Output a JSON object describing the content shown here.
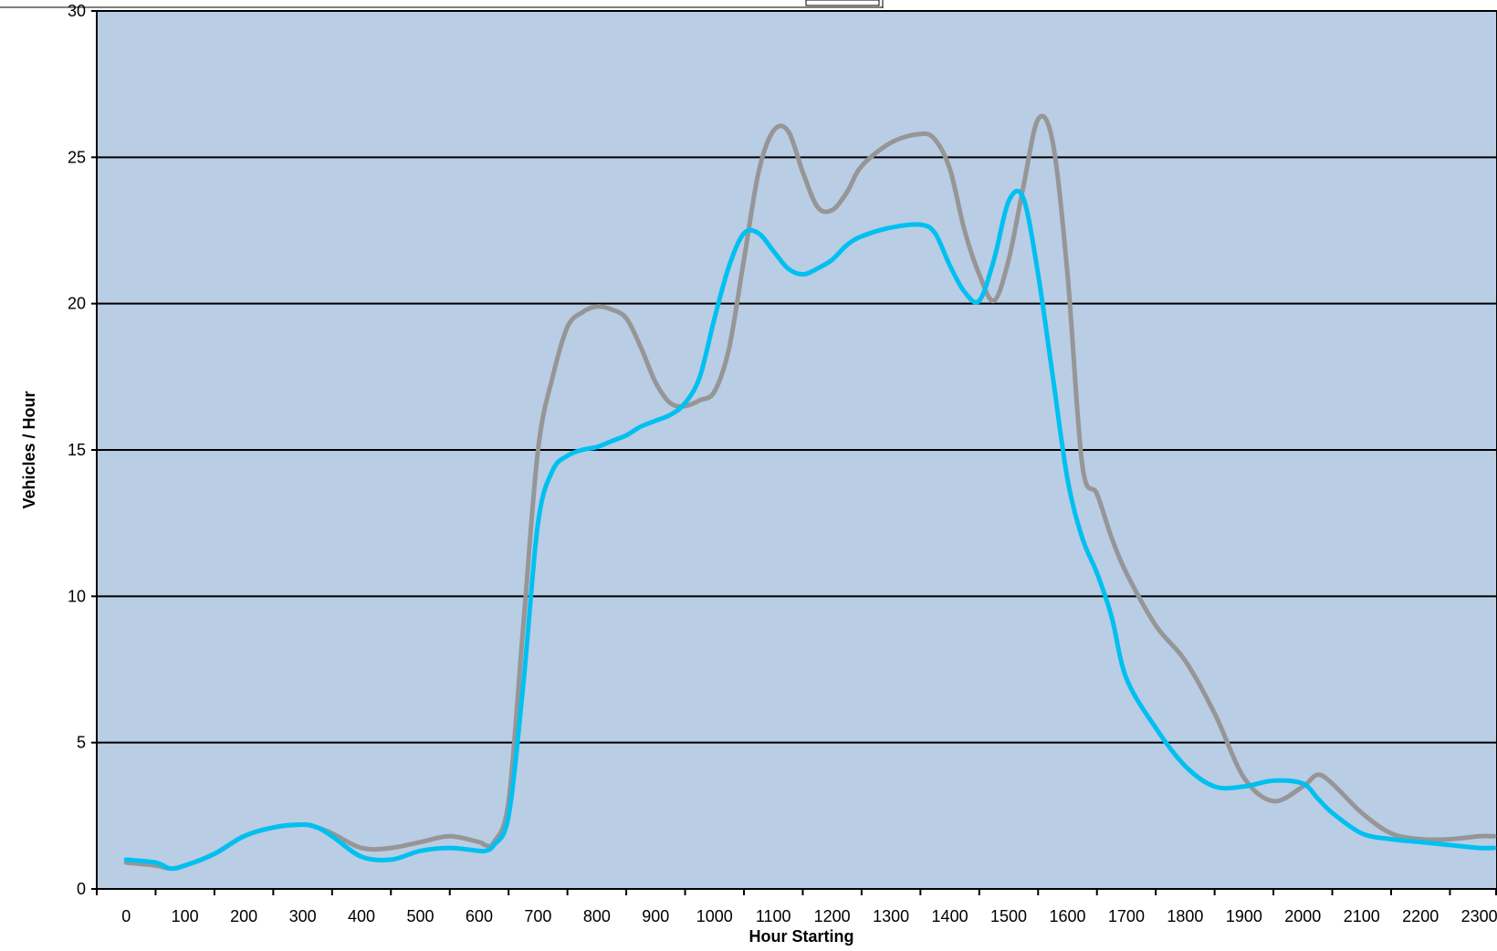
{
  "chart_data": {
    "type": "line",
    "title": "",
    "xlabel": "Hour Starting",
    "ylabel": "Vehicles / Hour",
    "ylim": [
      0,
      30
    ],
    "yticks": [
      "0",
      "5",
      "10",
      "15",
      "20",
      "25",
      "30"
    ],
    "xlim": [
      -50,
      2330
    ],
    "xticks": [
      "0",
      "100",
      "200",
      "300",
      "400",
      "500",
      "600",
      "700",
      "800",
      "900",
      "1000",
      "1100",
      "1200",
      "1300",
      "1400",
      "1500",
      "1600",
      "1700",
      "1800",
      "1900",
      "2000",
      "2100",
      "2200",
      "2300"
    ],
    "grid": "horizontal",
    "plot_background": "#b9cde5",
    "series": [
      {
        "color": "#969696",
        "x": [
          0,
          50,
          75,
          100,
          150,
          200,
          250,
          300,
          325,
          350,
          400,
          450,
          500,
          550,
          600,
          610,
          625,
          650,
          675,
          700,
          725,
          750,
          775,
          800,
          825,
          850,
          875,
          900,
          925,
          950,
          975,
          1000,
          1025,
          1050,
          1075,
          1100,
          1125,
          1150,
          1175,
          1200,
          1225,
          1250,
          1300,
          1350,
          1375,
          1400,
          1425,
          1450,
          1475,
          1500,
          1525,
          1550,
          1575,
          1600,
          1625,
          1650,
          1675,
          1700,
          1750,
          1800,
          1850,
          1900,
          1950,
          2000,
          2025,
          2050,
          2100,
          2150,
          2200,
          2250,
          2300,
          2325
        ],
        "y": [
          0.9,
          0.8,
          0.7,
          0.8,
          1.2,
          1.8,
          2.1,
          2.2,
          2.1,
          1.9,
          1.4,
          1.4,
          1.6,
          1.8,
          1.6,
          1.5,
          1.6,
          3.0,
          9.0,
          15.0,
          17.5,
          19.2,
          19.7,
          19.9,
          19.8,
          19.5,
          18.5,
          17.3,
          16.6,
          16.5,
          16.7,
          17.0,
          18.5,
          21.5,
          24.5,
          25.9,
          25.9,
          24.5,
          23.3,
          23.2,
          23.8,
          24.7,
          25.5,
          25.8,
          25.6,
          24.6,
          22.5,
          21.0,
          20.1,
          21.5,
          24.0,
          26.3,
          25.5,
          21.0,
          14.5,
          13.5,
          12.0,
          10.8,
          9.0,
          7.8,
          6.0,
          3.8,
          3.0,
          3.5,
          3.9,
          3.6,
          2.6,
          1.9,
          1.7,
          1.7,
          1.8,
          1.8
        ]
      },
      {
        "color": "#00c0f0",
        "x": [
          0,
          50,
          75,
          100,
          150,
          200,
          250,
          300,
          325,
          350,
          400,
          450,
          500,
          550,
          600,
          610,
          625,
          650,
          675,
          700,
          725,
          750,
          775,
          800,
          825,
          850,
          875,
          900,
          925,
          950,
          975,
          1000,
          1025,
          1050,
          1075,
          1100,
          1125,
          1150,
          1175,
          1200,
          1225,
          1250,
          1300,
          1350,
          1375,
          1400,
          1425,
          1450,
          1475,
          1500,
          1525,
          1550,
          1575,
          1600,
          1625,
          1650,
          1675,
          1700,
          1750,
          1800,
          1850,
          1900,
          1950,
          2000,
          2025,
          2050,
          2100,
          2150,
          2200,
          2250,
          2300,
          2325
        ],
        "y": [
          1.0,
          0.9,
          0.7,
          0.8,
          1.2,
          1.8,
          2.1,
          2.2,
          2.1,
          1.8,
          1.1,
          1.0,
          1.3,
          1.4,
          1.3,
          1.3,
          1.5,
          2.5,
          7.0,
          12.5,
          14.3,
          14.8,
          15.0,
          15.1,
          15.3,
          15.5,
          15.8,
          16.0,
          16.2,
          16.6,
          17.5,
          19.5,
          21.3,
          22.4,
          22.4,
          21.8,
          21.2,
          21.0,
          21.2,
          21.5,
          22.0,
          22.3,
          22.6,
          22.7,
          22.4,
          21.3,
          20.4,
          20.1,
          21.5,
          23.5,
          23.6,
          21.0,
          17.5,
          14.0,
          12.0,
          10.8,
          9.3,
          7.2,
          5.5,
          4.2,
          3.5,
          3.5,
          3.7,
          3.6,
          3.1,
          2.6,
          1.9,
          1.7,
          1.6,
          1.5,
          1.4,
          1.4
        ]
      }
    ]
  }
}
